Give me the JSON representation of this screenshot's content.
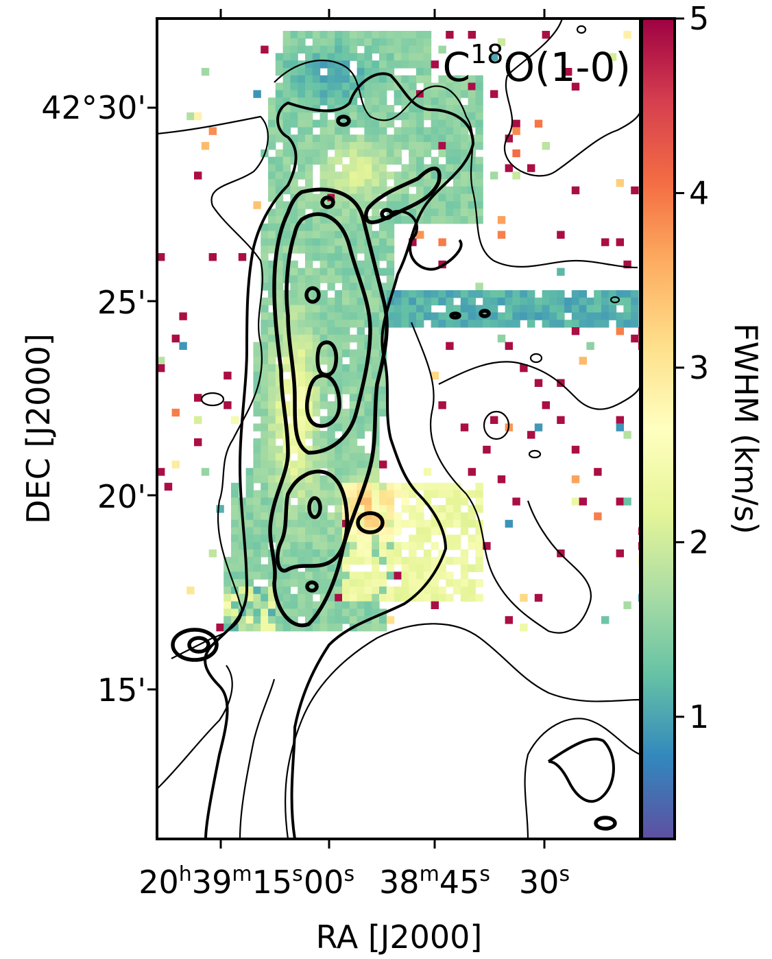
{
  "chart_data": {
    "type": "heatmap",
    "title": "C",
    "title_sup": "18",
    "title_rest": "O(1-0)",
    "xlabel": "RA [J2000]",
    "ylabel": "DEC [J2000]",
    "colorbar_label": "FWHM (km/s)",
    "colormap": "Spectral_r",
    "clim": [
      0.3,
      5
    ],
    "colorbar_ticks": [
      "1",
      "2",
      "3",
      "4",
      "5"
    ],
    "colorbar_tick_values": [
      1,
      2,
      3,
      4,
      5
    ],
    "x_ticks": [
      {
        "h": "20",
        "hu": "h",
        "m": "39",
        "mu": "m",
        "s": "15",
        "su": "s"
      },
      {
        "s": "00",
        "su": "s"
      },
      {
        "m": "38",
        "mu": "m",
        "s": "45",
        "su": "s"
      },
      {
        "s": "30",
        "su": "s"
      }
    ],
    "y_ticks": [
      "42°30'",
      "25'",
      "20'",
      "15'"
    ],
    "y_tick_values_arcmin": [
      30,
      25,
      20,
      15
    ],
    "contour_levels": "black contours of integrated intensity (thin to thick)",
    "colors": {
      "low": "#5e4fa2",
      "mid": "#ffffbf",
      "high": "#9e0142",
      "contour": "#000000"
    }
  }
}
